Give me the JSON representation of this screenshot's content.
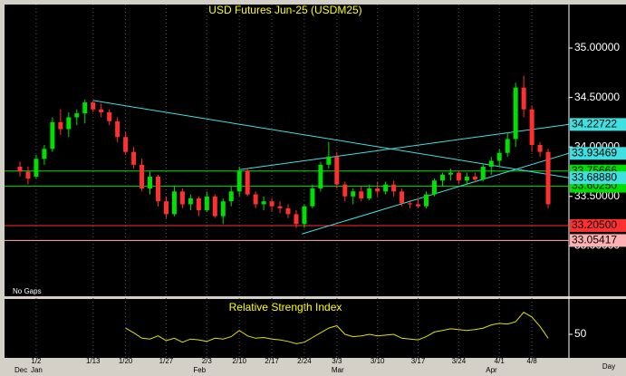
{
  "chart_data": {
    "type": "candlestick",
    "title": "USD Futures Jun-25 (USDM25)",
    "note": "No Gaps",
    "x_axis_label": "Day",
    "categories": [
      null,
      null,
      "1/2",
      null,
      null,
      null,
      null,
      null,
      null,
      "1/13",
      null,
      null,
      null,
      "1/20",
      null,
      null,
      null,
      null,
      "1/27",
      null,
      null,
      null,
      null,
      "2/3",
      null,
      null,
      null,
      "2/10",
      null,
      null,
      null,
      "2/17",
      null,
      null,
      null,
      "2/24",
      null,
      null,
      null,
      "3/3",
      null,
      null,
      null,
      null,
      "3/10",
      null,
      null,
      null,
      null,
      "3/17",
      null,
      null,
      null,
      null,
      "3/24",
      null,
      null,
      null,
      null,
      "4/1",
      null,
      null,
      null,
      "4/8",
      null,
      null
    ],
    "months": [
      "Dec",
      null,
      "Jan",
      null,
      null,
      null,
      null,
      null,
      null,
      null,
      null,
      null,
      null,
      null,
      null,
      null,
      null,
      null,
      null,
      null,
      null,
      null,
      "Feb",
      null,
      null,
      null,
      null,
      null,
      null,
      null,
      null,
      null,
      null,
      null,
      null,
      null,
      null,
      null,
      null,
      "Mar",
      null,
      null,
      null,
      null,
      null,
      null,
      null,
      null,
      null,
      null,
      null,
      null,
      null,
      null,
      null,
      null,
      null,
      null,
      "Apr",
      null,
      null,
      null,
      null,
      null,
      null,
      null
    ],
    "open": [
      33.8,
      33.75,
      33.7,
      33.88,
      33.98,
      34.25,
      34.18,
      34.3,
      34.34,
      34.45,
      34.38,
      34.35,
      34.26,
      34.1,
      33.95,
      33.82,
      33.58,
      33.7,
      33.45,
      33.32,
      33.55,
      33.42,
      33.48,
      33.36,
      33.5,
      33.3,
      33.45,
      33.55,
      33.76,
      33.52,
      33.42,
      33.45,
      33.4,
      33.38,
      33.32,
      33.22,
      33.4,
      33.58,
      33.82,
      33.9,
      33.62,
      33.5,
      33.55,
      33.48,
      33.58,
      33.55,
      33.62,
      33.55,
      33.43,
      33.42,
      33.4,
      33.52,
      33.66,
      33.72,
      33.74,
      33.66,
      33.7,
      33.67,
      33.8,
      33.86,
      33.94,
      34.08,
      34.6,
      34.38,
      34.02,
      33.95
    ],
    "high": [
      33.85,
      33.8,
      33.92,
      34.02,
      34.3,
      34.38,
      34.35,
      34.38,
      34.48,
      34.47,
      34.44,
      34.38,
      34.3,
      34.15,
      34.0,
      33.88,
      33.75,
      33.72,
      33.5,
      33.6,
      33.58,
      33.52,
      33.5,
      33.55,
      33.52,
      33.48,
      33.6,
      33.8,
      33.78,
      33.55,
      33.5,
      33.48,
      33.45,
      33.42,
      33.36,
      33.42,
      33.62,
      33.85,
      34.05,
      33.95,
      33.65,
      33.58,
      33.6,
      33.62,
      33.65,
      33.65,
      33.66,
      33.58,
      33.46,
      33.48,
      33.55,
      33.68,
      33.74,
      33.78,
      33.76,
      33.74,
      33.74,
      33.82,
      33.9,
      33.98,
      34.15,
      34.65,
      34.72,
      34.42,
      34.05,
      33.98
    ],
    "low": [
      33.7,
      33.62,
      33.68,
      33.82,
      33.95,
      34.12,
      34.1,
      34.22,
      34.24,
      34.35,
      34.3,
      34.22,
      34.05,
      33.92,
      33.78,
      33.55,
      33.52,
      33.4,
      33.28,
      33.3,
      33.38,
      33.36,
      33.3,
      33.34,
      33.28,
      33.22,
      33.4,
      33.5,
      33.5,
      33.38,
      33.36,
      33.35,
      33.33,
      33.28,
      33.18,
      33.18,
      33.38,
      33.55,
      33.78,
      33.58,
      33.45,
      33.42,
      33.45,
      33.46,
      33.5,
      33.52,
      33.5,
      33.4,
      33.38,
      33.38,
      33.38,
      33.5,
      33.6,
      33.66,
      33.62,
      33.62,
      33.64,
      33.65,
      33.72,
      33.8,
      33.9,
      34.0,
      34.3,
      33.95,
      33.9,
      33.38
    ],
    "close": [
      33.75,
      33.68,
      33.88,
      33.98,
      34.25,
      34.18,
      34.3,
      34.34,
      34.45,
      34.38,
      34.35,
      34.26,
      34.1,
      33.95,
      33.82,
      33.58,
      33.7,
      33.45,
      33.32,
      33.55,
      33.42,
      33.48,
      33.36,
      33.5,
      33.3,
      33.45,
      33.55,
      33.76,
      33.52,
      33.42,
      33.45,
      33.4,
      33.38,
      33.32,
      33.22,
      33.4,
      33.58,
      33.82,
      33.9,
      33.62,
      33.5,
      33.55,
      33.48,
      33.58,
      33.55,
      33.62,
      33.55,
      33.43,
      33.42,
      33.4,
      33.52,
      33.66,
      33.72,
      33.74,
      33.66,
      33.7,
      33.67,
      33.8,
      33.86,
      33.94,
      34.08,
      34.6,
      34.38,
      34.02,
      33.95,
      33.42
    ],
    "up_color": "#00e000",
    "down_color": "#ff3030",
    "ylim": [
      32.49,
      35.44
    ],
    "yticks": [
      {
        "value": 35,
        "label": "35.00000"
      },
      {
        "value": 34.5,
        "label": "34.50000"
      },
      {
        "value": 34,
        "label": "34.00000"
      },
      {
        "value": 33.5,
        "label": "33.50000"
      },
      {
        "value": 33,
        "label": "33.00000"
      }
    ],
    "levels": [
      {
        "value": 33.75666,
        "label": "33.75666",
        "color": "#00e000"
      },
      {
        "value": 33.6025,
        "label": "33.60250",
        "color": "#00e000"
      },
      {
        "value": 33.205,
        "label": "33.20500",
        "color": "#ff3030"
      },
      {
        "value": 33.05417,
        "label": "33.05417",
        "color": "#ffb0b0"
      }
    ],
    "trendlines": [
      {
        "x": [
          9,
          67.5
        ],
        "y": [
          34.47,
          33.6888
        ],
        "end_label": "33.68880",
        "color": "#40e0e0"
      },
      {
        "x": [
          27,
          67.5
        ],
        "y": [
          33.77,
          34.22722
        ],
        "end_label": "34.22722",
        "color": "#40e0e0"
      },
      {
        "x": [
          34.7,
          67.5
        ],
        "y": [
          33.12,
          33.93469
        ],
        "end_label": "33.93469",
        "color": "#40e0e0"
      }
    ],
    "rsi": {
      "title": "Relative Strength Index",
      "color": "#e0e000",
      "ylim": [
        20,
        95
      ],
      "yticks": [
        50
      ],
      "values": [
        null,
        null,
        null,
        null,
        null,
        null,
        null,
        null,
        null,
        null,
        null,
        null,
        null,
        58,
        52,
        45,
        44,
        48,
        42,
        45,
        40,
        44,
        43,
        41,
        45,
        44,
        47,
        55,
        48,
        45,
        46,
        44,
        43,
        41,
        38,
        40,
        46,
        52,
        58,
        61,
        50,
        47,
        48,
        50,
        48,
        49,
        50,
        45,
        44,
        43,
        47,
        53,
        55,
        57,
        56,
        55,
        56,
        58,
        62,
        64,
        63,
        66,
        78,
        72,
        60,
        45
      ]
    }
  }
}
